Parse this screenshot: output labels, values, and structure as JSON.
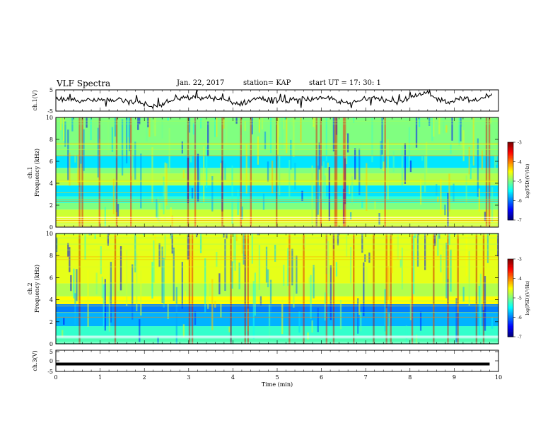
{
  "header": {
    "title": "VLF Spectra",
    "date": "Jan. 22, 2017",
    "station": "station= KAP",
    "start": "start  UT =   17: 30: 1"
  },
  "chart_data": [
    {
      "type": "line",
      "panel": "ch1-waveform",
      "ylabel": "ch.1(V)",
      "ylim": [
        -5,
        5
      ],
      "yticks": [
        "5",
        "-5"
      ],
      "xlim": [
        0,
        10
      ],
      "series": [
        {
          "values": [
            0.5,
            0.6,
            0.3,
            0.2,
            0.1,
            0.0,
            0.2,
            0.1,
            0.0,
            -0.1,
            0.3,
            0.5,
            0.6,
            0.4,
            0.5,
            0.8,
            0.6,
            0.0,
            -0.8,
            -1.2,
            -1.6,
            -2.2,
            -2.8,
            -2.6,
            -2.0,
            -1.0,
            -0.4,
            0.0,
            0.6,
            1.0,
            1.2,
            1.4,
            1.2,
            1.0,
            1.3,
            1.5,
            1.1,
            0.5,
            0.3,
            0.0,
            -0.5,
            -1.2,
            -1.6,
            -1.0,
            -0.6,
            0.4,
            0.8,
            1.0,
            0.6,
            0.8,
            0.4,
            0.0,
            -0.6,
            -0.4,
            0.2,
            0.6,
            0.8,
            1.0,
            0.6,
            0.2,
            0.4,
            0.8,
            1.0,
            1.2,
            0.4,
            -0.4,
            -1.0,
            -1.6,
            -1.2,
            -0.6,
            0.0,
            0.8,
            1.4,
            2.0,
            1.2,
            0.6,
            0.0,
            -0.4,
            -0.8,
            -0.2,
            0.4,
            1.0,
            1.6,
            2.2,
            2.8,
            3.6,
            2.0,
            1.2,
            0.4,
            0.0,
            -0.6,
            -0.2,
            0.6,
            1.4,
            0.8,
            0.2,
            -0.2,
            0.2,
            1.0,
            2.4,
            3.2
          ]
        }
      ]
    },
    {
      "type": "heatmap",
      "panel": "ch1-spectrogram",
      "ylabel": "ch.1 Frequency (kHz)",
      "ylim": [
        0,
        10
      ],
      "yticks": [
        "0",
        "2",
        "4",
        "6",
        "8",
        "10"
      ],
      "xlim": [
        0,
        10
      ],
      "colorbar": {
        "label": "log(PSD)(V²/Hz)",
        "ticks": [
          "-3",
          "-4",
          "-5",
          "-6",
          "-7"
        ],
        "range": [
          -7,
          -3
        ]
      },
      "bands": [
        {
          "fmin": 0.0,
          "fmax": 0.4,
          "value": -4.7
        },
        {
          "fmin": 0.4,
          "fmax": 1.0,
          "value": -4.6
        },
        {
          "fmin": 1.0,
          "fmax": 1.6,
          "value": -4.7
        },
        {
          "fmin": 1.6,
          "fmax": 2.2,
          "value": -5.0
        },
        {
          "fmin": 2.2,
          "fmax": 2.8,
          "value": -5.3
        },
        {
          "fmin": 2.8,
          "fmax": 3.8,
          "value": -5.6
        },
        {
          "fmin": 3.8,
          "fmax": 4.9,
          "value": -4.8
        },
        {
          "fmin": 4.9,
          "fmax": 5.4,
          "value": -5.0
        },
        {
          "fmin": 5.4,
          "fmax": 6.5,
          "value": -5.6
        },
        {
          "fmin": 6.5,
          "fmax": 10.0,
          "value": -5.0
        }
      ]
    },
    {
      "type": "heatmap",
      "panel": "ch2-spectrogram",
      "ylabel": "ch.2 Frequency (kHz)",
      "ylim": [
        0,
        10
      ],
      "yticks": [
        "0",
        "2",
        "4",
        "6",
        "8",
        "10"
      ],
      "xlim": [
        0,
        10
      ],
      "colorbar": {
        "label": "log(PSD)(V²/Hz)",
        "ticks": [
          "-3",
          "-4",
          "-5",
          "-6",
          "-7"
        ],
        "range": [
          -7,
          -3
        ]
      },
      "bands": [
        {
          "fmin": 0.0,
          "fmax": 0.5,
          "value": -5.2
        },
        {
          "fmin": 0.5,
          "fmax": 1.6,
          "value": -5.3
        },
        {
          "fmin": 1.6,
          "fmax": 2.8,
          "value": -5.8
        },
        {
          "fmin": 2.8,
          "fmax": 3.6,
          "value": -6.0
        },
        {
          "fmin": 3.6,
          "fmax": 4.3,
          "value": -4.5
        },
        {
          "fmin": 4.3,
          "fmax": 5.5,
          "value": -4.8
        },
        {
          "fmin": 5.5,
          "fmax": 10.0,
          "value": -4.6
        }
      ]
    },
    {
      "type": "line",
      "panel": "ch3-waveform",
      "ylabel": "ch.3(V)",
      "ylim": [
        -5,
        5
      ],
      "yticks": [
        "5",
        "0",
        "-5"
      ],
      "xlabel": "Time (min)",
      "xlim": [
        0,
        10
      ],
      "xticks": [
        "0",
        "1",
        "2",
        "3",
        "4",
        "5",
        "6",
        "7",
        "8",
        "9",
        "10"
      ],
      "series": [
        {
          "x": [
            0,
            9.8
          ],
          "values": [
            -1.5,
            -1.5
          ]
        }
      ]
    }
  ]
}
